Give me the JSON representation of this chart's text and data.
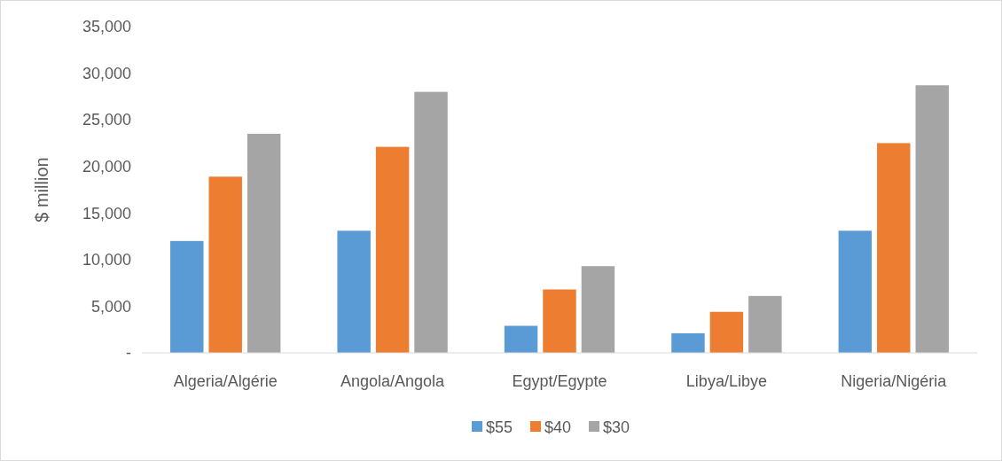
{
  "chart_data": {
    "type": "bar",
    "ylabel": "$ million",
    "categories": [
      "Algeria/Algérie",
      "Angola/Angola",
      "Egypt/Egypte",
      "Libya/Libye",
      "Nigeria/Nigéria"
    ],
    "series": [
      {
        "name": "$55",
        "color": "#5b9bd5",
        "values": [
          12000,
          13100,
          2900,
          2100,
          13100
        ]
      },
      {
        "name": "$40",
        "color": "#ed7d31",
        "values": [
          18900,
          22100,
          6800,
          4400,
          22500
        ]
      },
      {
        "name": "$30",
        "color": "#a5a5a5",
        "values": [
          23500,
          28000,
          9300,
          6100,
          28700
        ]
      }
    ],
    "ylim": [
      0,
      35000
    ],
    "yticks": [
      {
        "value": 0,
        "label": "-"
      },
      {
        "value": 5000,
        "label": "5,000"
      },
      {
        "value": 10000,
        "label": "10,000"
      },
      {
        "value": 15000,
        "label": "15,000"
      },
      {
        "value": 20000,
        "label": "20,000"
      },
      {
        "value": 25000,
        "label": "25,000"
      },
      {
        "value": 30000,
        "label": "30,000"
      },
      {
        "value": 35000,
        "label": "35,000"
      }
    ],
    "grid": false,
    "legend": "bottom"
  }
}
